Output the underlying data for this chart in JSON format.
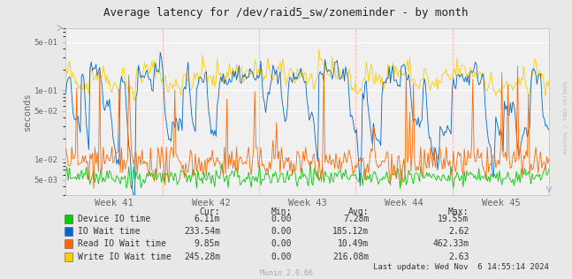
{
  "title": "Average latency for /dev/raid5_sw/zoneminder - by month",
  "ylabel": "seconds",
  "yticks_log": [
    0.005,
    0.01,
    0.05,
    0.1,
    0.5
  ],
  "ytick_labels": [
    "5e-03",
    "1e-02",
    "5e-02",
    "1e-01",
    "5e-01"
  ],
  "week_labels": [
    "Week 41",
    "Week 42",
    "Week 43",
    "Week 44",
    "Week 45"
  ],
  "bg_color": "#e8e8e8",
  "plot_bg": "#f0f0f0",
  "colors": {
    "device_io": "#00cc00",
    "io_wait": "#0066cc",
    "read_io_wait": "#ff6600",
    "write_io_wait": "#ffcc00"
  },
  "legend": [
    {
      "label": "Device IO time",
      "color": "#00cc00",
      "cur": "6.11m",
      "min": "0.00",
      "avg": "7.28m",
      "max": "19.55m"
    },
    {
      "label": "IO Wait time",
      "color": "#0066cc",
      "cur": "233.54m",
      "min": "0.00",
      "avg": "185.12m",
      "max": "2.62"
    },
    {
      "label": "Read IO Wait time",
      "color": "#ff6600",
      "cur": "9.85m",
      "min": "0.00",
      "avg": "10.49m",
      "max": "462.33m"
    },
    {
      "label": "Write IO Wait time",
      "color": "#ffcc00",
      "cur": "245.28m",
      "min": "0.00",
      "avg": "216.08m",
      "max": "2.63"
    }
  ],
  "last_update": "Last update: Wed Nov  6 14:55:14 2024",
  "munin_version": "Munin 2.0.66",
  "rotated_text": "RADTOOL / TOBI OETIKER",
  "num_points": 400,
  "seed": 42
}
